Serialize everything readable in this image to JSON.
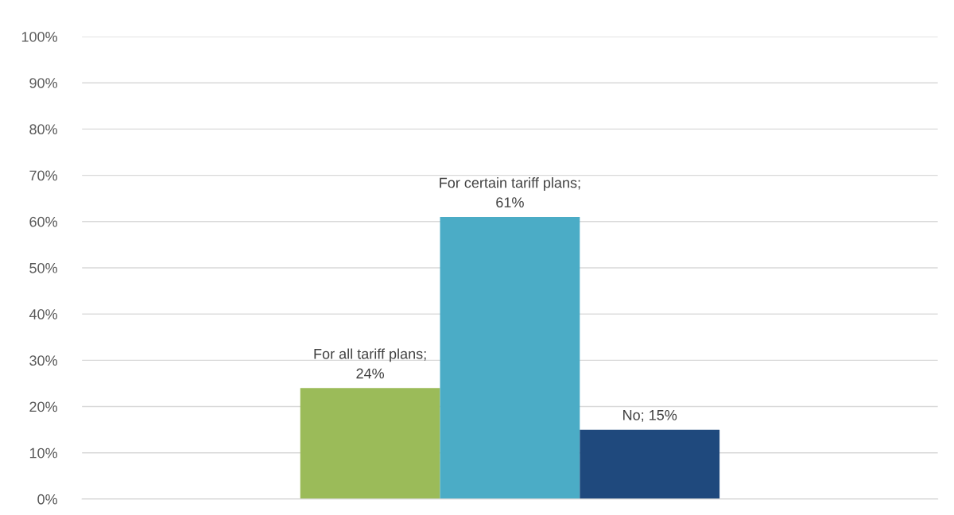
{
  "chart_data": {
    "type": "bar",
    "categories": [
      null
    ],
    "series": [
      {
        "color": "#9bbb59",
        "values": [
          24
        ],
        "value_labels": [
          "For all tariff plans;\n24%"
        ]
      },
      {
        "color": "#4bacc6",
        "values": [
          61
        ],
        "value_labels": [
          "For certain tariff plans;\n61%"
        ]
      },
      {
        "color": "#1f497d",
        "values": [
          15
        ],
        "value_labels": [
          "No; 15%"
        ]
      }
    ],
    "ylim": [
      0,
      100
    ],
    "yticks": [
      {
        "value": 0,
        "label": "0%"
      },
      {
        "value": 10,
        "label": "10%"
      },
      {
        "value": 20,
        "label": "20%"
      },
      {
        "value": 30,
        "label": "30%"
      },
      {
        "value": 40,
        "label": "40%"
      },
      {
        "value": 50,
        "label": "50%"
      },
      {
        "value": 60,
        "label": "60%"
      },
      {
        "value": 70,
        "label": "70%"
      },
      {
        "value": 80,
        "label": "80%"
      },
      {
        "value": 90,
        "label": "90%"
      },
      {
        "value": 100,
        "label": "100%"
      }
    ],
    "grid": "y",
    "legend": false,
    "tick_labels": "y"
  }
}
